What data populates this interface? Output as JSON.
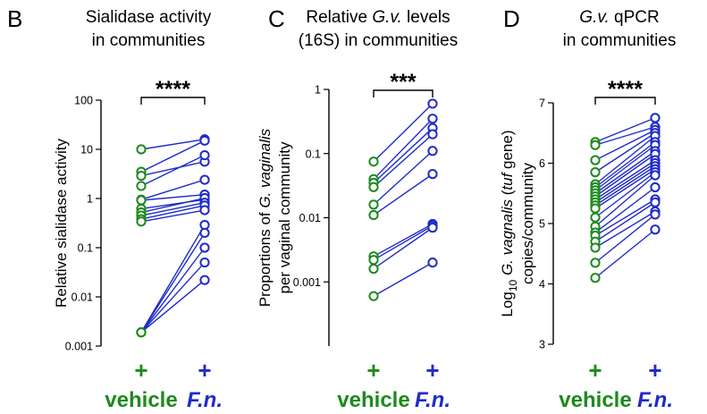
{
  "colors": {
    "vehicle": "#1e8a1e",
    "fn": "#1f2bc9",
    "line": "#1f2bc9"
  },
  "chart_data": [
    {
      "letter": "B",
      "type": "scatter",
      "title_lines": [
        "Sialidase activity",
        "in communities"
      ],
      "ylabel_lines": [
        "Relative sialidase activity"
      ],
      "scale": "log",
      "ylim": [
        0.001,
        100
      ],
      "ticks": [
        "100",
        "10",
        "1",
        "0.1",
        "0.01",
        "0.001"
      ],
      "categories": [
        {
          "plus": "+",
          "label": "vehicle"
        },
        {
          "plus": "+",
          "label": "F.n."
        }
      ],
      "significance": "****",
      "series": [
        {
          "values": [
            [
              10,
              16
            ],
            [
              3.5,
              15
            ],
            [
              2.9,
              5.6
            ],
            [
              1.8,
              7.6
            ],
            [
              0.95,
              2.4
            ],
            [
              0.92,
              1.2
            ],
            [
              0.62,
              0.95
            ],
            [
              0.52,
              1.02
            ],
            [
              0.45,
              0.82
            ],
            [
              0.38,
              0.72
            ],
            [
              0.34,
              0.58
            ],
            [
              0.0019,
              0.29
            ],
            [
              0.0019,
              0.2
            ],
            [
              0.0019,
              0.1
            ],
            [
              0.0019,
              0.05
            ],
            [
              0.0019,
              0.022
            ]
          ]
        }
      ]
    },
    {
      "letter": "C",
      "type": "scatter",
      "title_lines": [
        "Relative G.v. levels",
        "(16S) in communities"
      ],
      "ylabel_lines": [
        "Proportions of G. vaginalis",
        "per vaginal community"
      ],
      "scale": "log",
      "ylim": [
        0.0001,
        1
      ],
      "ticks": [
        "1",
        "0.1",
        "0.01",
        "0.001"
      ],
      "categories": [
        {
          "plus": "+",
          "label": "vehicle"
        },
        {
          "plus": "+",
          "label": "F.n."
        }
      ],
      "significance": "***",
      "series": [
        {
          "values": [
            [
              0.075,
              0.6
            ],
            [
              0.04,
              0.35
            ],
            [
              0.035,
              0.25
            ],
            [
              0.03,
              0.2
            ],
            [
              0.016,
              0.11
            ],
            [
              0.011,
              0.048
            ],
            [
              0.0025,
              0.008
            ],
            [
              0.0022,
              0.0075
            ],
            [
              0.0016,
              0.007
            ],
            [
              0.0006,
              0.002
            ]
          ]
        }
      ]
    },
    {
      "letter": "D",
      "type": "scatter",
      "title_lines": [
        "G.v. qPCR",
        "in communities"
      ],
      "ylabel_lines": [
        "Log10 G. vagnalis (tuf gene)",
        "copies/community"
      ],
      "scale": "linear",
      "ylim": [
        3,
        7
      ],
      "ticks": [
        "7",
        "6",
        "5",
        "4",
        "3"
      ],
      "categories": [
        {
          "plus": "+",
          "label": "vehicle"
        },
        {
          "plus": "+",
          "label": "F.n."
        }
      ],
      "significance": "****",
      "series": [
        {
          "values": [
            [
              6.35,
              6.75
            ],
            [
              6.3,
              6.6
            ],
            [
              6.05,
              6.55
            ],
            [
              5.85,
              6.5
            ],
            [
              5.65,
              6.45
            ],
            [
              5.6,
              6.35
            ],
            [
              5.55,
              6.3
            ],
            [
              5.5,
              6.2
            ],
            [
              5.45,
              6.15
            ],
            [
              5.4,
              6.05
            ],
            [
              5.35,
              6.0
            ],
            [
              5.3,
              5.95
            ],
            [
              5.25,
              5.9
            ],
            [
              5.1,
              5.85
            ],
            [
              4.95,
              5.8
            ],
            [
              4.85,
              5.6
            ],
            [
              4.8,
              5.4
            ],
            [
              4.7,
              5.35
            ],
            [
              4.6,
              5.2
            ],
            [
              4.35,
              5.15
            ],
            [
              4.1,
              4.9
            ]
          ]
        }
      ]
    }
  ]
}
